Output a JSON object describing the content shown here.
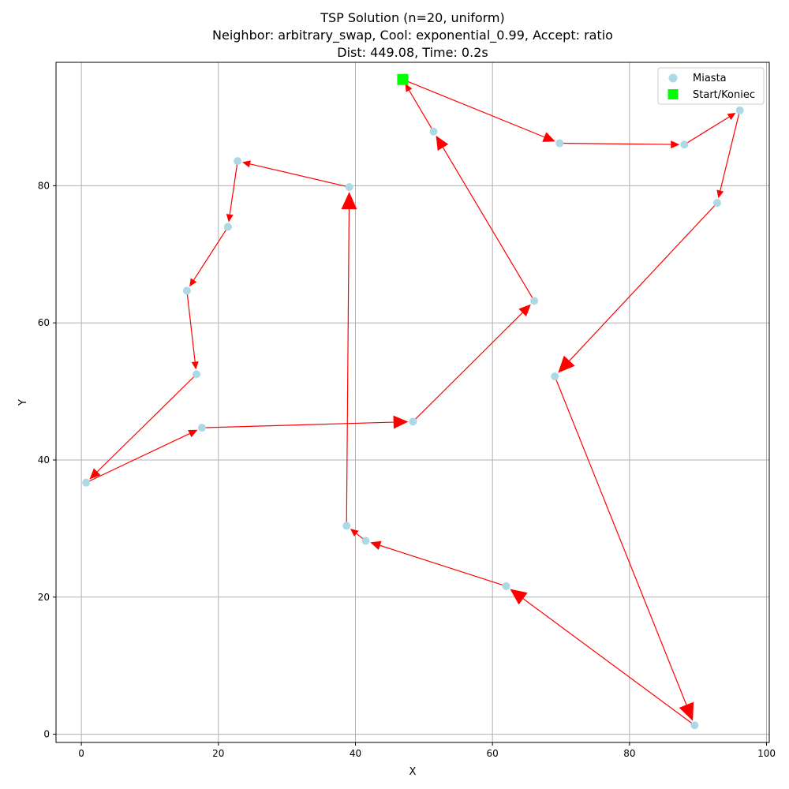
{
  "chart_data": {
    "type": "scatter",
    "title": [
      "TSP Solution (n=20, uniform)",
      "Neighbor: arbitrary_swap, Cool: exponential_0.99, Accept: ratio",
      "Dist: 449.08, Time: 0.2s"
    ],
    "xlabel": "X",
    "ylabel": "Y",
    "xlim": [
      -3.7,
      100.4
    ],
    "ylim": [
      -1.2,
      98.0
    ],
    "xticks": [
      0,
      20,
      40,
      60,
      80,
      100
    ],
    "yticks": [
      0,
      20,
      40,
      60,
      80
    ],
    "grid": true,
    "legend": {
      "placement": "top-right",
      "entries": [
        "Miasta",
        "Start/Koniec"
      ]
    },
    "colors": {
      "city": "#add8e6",
      "start": "#00ff00",
      "route": "#ff0000",
      "grid": "#b0b0b0"
    },
    "start": {
      "x": 46.9,
      "y": 95.5
    },
    "tour": [
      {
        "x": 46.9,
        "y": 95.5
      },
      {
        "x": 69.8,
        "y": 86.2
      },
      {
        "x": 88.0,
        "y": 86.0
      },
      {
        "x": 96.1,
        "y": 91.0
      },
      {
        "x": 92.8,
        "y": 77.5
      },
      {
        "x": 69.1,
        "y": 52.2
      },
      {
        "x": 89.5,
        "y": 1.3
      },
      {
        "x": 62.0,
        "y": 21.6
      },
      {
        "x": 41.5,
        "y": 28.2
      },
      {
        "x": 38.7,
        "y": 30.4
      },
      {
        "x": 39.1,
        "y": 79.8
      },
      {
        "x": 22.8,
        "y": 83.6
      },
      {
        "x": 21.4,
        "y": 74.0
      },
      {
        "x": 15.4,
        "y": 64.7
      },
      {
        "x": 16.8,
        "y": 52.5
      },
      {
        "x": 0.7,
        "y": 36.7
      },
      {
        "x": 17.6,
        "y": 44.7
      },
      {
        "x": 48.4,
        "y": 45.6
      },
      {
        "x": 66.1,
        "y": 63.2
      },
      {
        "x": 51.4,
        "y": 87.9
      }
    ]
  }
}
